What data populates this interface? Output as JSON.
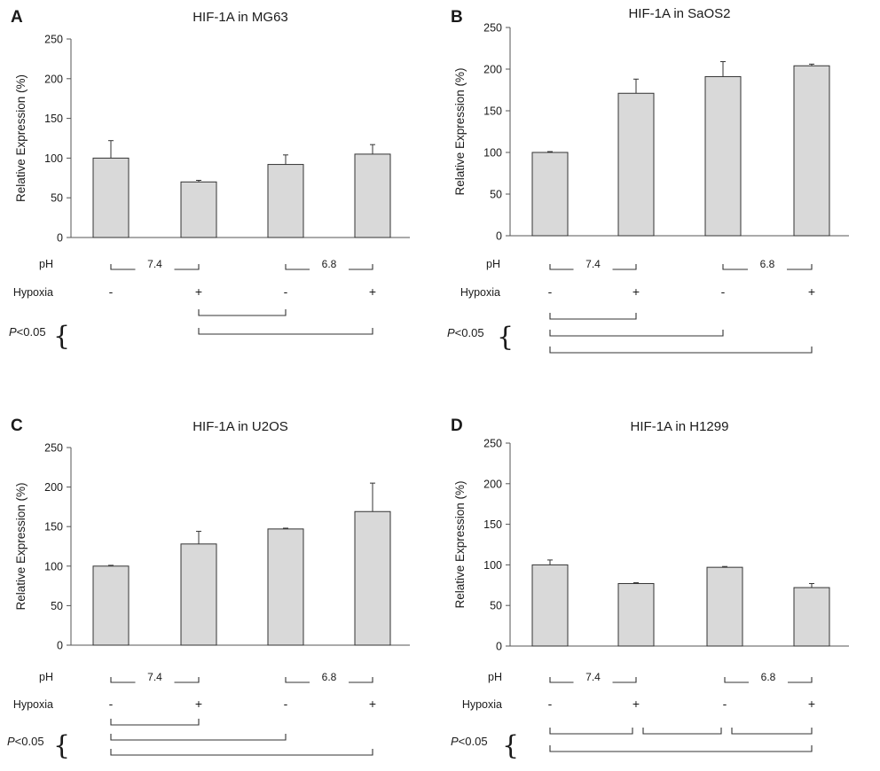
{
  "labels": {
    "ylabel": "Relative Expression (%)",
    "ph": "pH",
    "hypoxia": "Hypoxia",
    "p_italic": "P",
    "p_rest": "<0.05",
    "brace": "{"
  },
  "chart_data": [
    {
      "panel": "A",
      "type": "bar",
      "title": "HIF-1A in MG63",
      "ylabel": "Relative Expression (%)",
      "ylim": [
        0,
        250
      ],
      "yticks": [
        "0",
        "50",
        "100",
        "150",
        "200",
        "250"
      ],
      "categories": [
        "pH 7.4 / Hypoxia -",
        "pH 7.4 / Hypoxia +",
        "pH 6.8 / Hypoxia -",
        "pH 6.8 / Hypoxia +"
      ],
      "values": [
        100,
        70,
        92,
        105
      ],
      "errors": [
        22,
        2,
        12,
        12
      ],
      "ph_groups": [
        "7.4",
        "6.8"
      ],
      "hypoxia": [
        "-",
        "+",
        "-",
        "+"
      ],
      "significance": [
        [
          1,
          2
        ],
        [
          1,
          3
        ]
      ]
    },
    {
      "panel": "B",
      "type": "bar",
      "title": "HIF-1A in SaOS2",
      "ylabel": "Relative Expression (%)",
      "ylim": [
        0,
        250
      ],
      "yticks": [
        "0",
        "50",
        "100",
        "150",
        "200",
        "250"
      ],
      "categories": [
        "pH 7.4 / Hypoxia -",
        "pH 7.4 / Hypoxia +",
        "pH 6.8 / Hypoxia -",
        "pH 6.8 / Hypoxia +"
      ],
      "values": [
        100,
        171,
        191,
        204
      ],
      "errors": [
        1,
        17,
        18,
        2
      ],
      "ph_groups": [
        "7.4",
        "6.8"
      ],
      "hypoxia": [
        "-",
        "+",
        "-",
        "+"
      ],
      "significance": [
        [
          0,
          1
        ],
        [
          0,
          2
        ],
        [
          0,
          3
        ]
      ]
    },
    {
      "panel": "C",
      "type": "bar",
      "title": "HIF-1A in U2OS",
      "ylabel": "Relative Expression (%)",
      "ylim": [
        0,
        250
      ],
      "yticks": [
        "0",
        "50",
        "100",
        "150",
        "200",
        "250"
      ],
      "categories": [
        "pH 7.4 / Hypoxia -",
        "pH 7.4 / Hypoxia +",
        "pH 6.8 / Hypoxia -",
        "pH 6.8 / Hypoxia +"
      ],
      "values": [
        100,
        128,
        147,
        169
      ],
      "errors": [
        1,
        16,
        1,
        36
      ],
      "ph_groups": [
        "7.4",
        "6.8"
      ],
      "hypoxia": [
        "-",
        "+",
        "-",
        "+"
      ],
      "significance": [
        [
          0,
          1
        ],
        [
          0,
          2
        ],
        [
          0,
          3
        ]
      ]
    },
    {
      "panel": "D",
      "type": "bar",
      "title": "HIF-1A in H1299",
      "ylabel": "Relative Expression (%)",
      "ylim": [
        0,
        250
      ],
      "yticks": [
        "0",
        "50",
        "100",
        "150",
        "200",
        "250"
      ],
      "categories": [
        "pH 7.4 / Hypoxia -",
        "pH 7.4 / Hypoxia +",
        "pH 6.8 / Hypoxia -",
        "pH 6.8 / Hypoxia +"
      ],
      "values": [
        100,
        77,
        97,
        72
      ],
      "errors": [
        6,
        1,
        1,
        5
      ],
      "ph_groups": [
        "7.4",
        "6.8"
      ],
      "hypoxia": [
        "-",
        "+",
        "-",
        "+"
      ],
      "significance": [
        [
          0,
          1
        ],
        [
          1,
          2
        ],
        [
          2,
          3
        ],
        [
          0,
          3
        ]
      ]
    }
  ]
}
